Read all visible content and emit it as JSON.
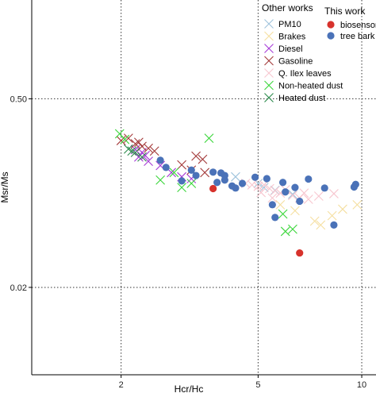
{
  "chart_data": {
    "type": "scatter",
    "x_scale": "log",
    "y_scale": "log",
    "xlabel": "Hcr/Hc",
    "ylabel": "Msr/Ms",
    "xlim": [
      1.1,
      11
    ],
    "ylim": [
      0.0045,
      2.7
    ],
    "x_ticks": [
      {
        "value": 2,
        "label": "2"
      },
      {
        "value": 5,
        "label": "5"
      },
      {
        "value": 10,
        "label": "10"
      }
    ],
    "y_ticks": [
      {
        "value": 0.5,
        "label": "0.50"
      },
      {
        "value": 0.02,
        "label": "0.02"
      }
    ],
    "grid": "dotted major lines",
    "legends": [
      {
        "title": "Other works",
        "position": "top-right",
        "entries": [
          "PM10",
          "Brakes",
          "Diesel",
          "Gasoline",
          "Q. Ilex leaves",
          "Non-heated dust",
          "Heated dust"
        ]
      },
      {
        "title": "This work",
        "position": "top-right",
        "entries": [
          "biosensor",
          "tree bark"
        ]
      }
    ],
    "series": [
      {
        "name": "PM10",
        "marker": "cross",
        "color": "#9ec3dc",
        "points": [
          [
            4.3,
            0.132
          ],
          [
            5.0,
            0.118
          ],
          [
            5.6,
            0.105
          ],
          [
            6.3,
            0.098
          ],
          [
            5.2,
            0.11
          ]
        ]
      },
      {
        "name": "Brakes",
        "marker": "cross",
        "color": "#f5dfa0",
        "points": [
          [
            5.8,
            0.082
          ],
          [
            6.4,
            0.074
          ],
          [
            7.3,
            0.062
          ],
          [
            7.6,
            0.058
          ],
          [
            8.8,
            0.076
          ],
          [
            9.7,
            0.082
          ],
          [
            8.2,
            0.068
          ]
        ]
      },
      {
        "name": "Diesel",
        "marker": "cross",
        "color": "#a63ad6",
        "points": [
          [
            2.2,
            0.21
          ],
          [
            2.3,
            0.2
          ],
          [
            2.25,
            0.185
          ],
          [
            2.4,
            0.172
          ],
          [
            2.6,
            0.16
          ],
          [
            3.0,
            0.132
          ],
          [
            3.2,
            0.128
          ],
          [
            2.8,
            0.142
          ],
          [
            2.35,
            0.19
          ]
        ]
      },
      {
        "name": "Gasoline",
        "marker": "cross",
        "color": "#a33a3a",
        "points": [
          [
            2.0,
            0.245
          ],
          [
            2.1,
            0.255
          ],
          [
            2.2,
            0.232
          ],
          [
            2.3,
            0.222
          ],
          [
            2.4,
            0.215
          ],
          [
            2.5,
            0.205
          ],
          [
            2.25,
            0.238
          ],
          [
            3.3,
            0.188
          ],
          [
            3.45,
            0.178
          ],
          [
            3.0,
            0.162
          ],
          [
            3.2,
            0.148
          ],
          [
            3.5,
            0.142
          ]
        ]
      },
      {
        "name": "Q. Ilex leaves",
        "marker": "cross",
        "color": "#f7c6cf",
        "points": [
          [
            4.6,
            0.118
          ],
          [
            4.8,
            0.115
          ],
          [
            5.0,
            0.112
          ],
          [
            5.2,
            0.115
          ],
          [
            5.4,
            0.108
          ],
          [
            5.6,
            0.104
          ],
          [
            5.8,
            0.1
          ],
          [
            6.0,
            0.106
          ],
          [
            6.3,
            0.096
          ],
          [
            6.6,
            0.092
          ],
          [
            7.0,
            0.09
          ],
          [
            7.5,
            0.095
          ],
          [
            8.3,
            0.099
          ],
          [
            6.8,
            0.1
          ],
          [
            5.5,
            0.092
          ],
          [
            5.1,
            0.101
          ]
        ]
      },
      {
        "name": "Non-heated dust",
        "marker": "cross",
        "color": "#3ad63a",
        "points": [
          [
            1.98,
            0.275
          ],
          [
            2.05,
            0.25
          ],
          [
            2.6,
            0.125
          ],
          [
            3.0,
            0.11
          ],
          [
            3.2,
            0.118
          ],
          [
            3.6,
            0.255
          ],
          [
            2.85,
            0.142
          ],
          [
            5.9,
            0.07
          ],
          [
            6.0,
            0.052
          ],
          [
            6.3,
            0.054
          ]
        ]
      },
      {
        "name": "Heated dust",
        "marker": "cross",
        "color": "#2e8b4e",
        "points": [
          [
            2.1,
            0.212
          ],
          [
            2.2,
            0.2
          ],
          [
            2.3,
            0.185
          ],
          [
            2.15,
            0.205
          ]
        ]
      },
      {
        "name": "biosensor",
        "marker": "circle",
        "color": "#d7322c",
        "points": [
          [
            3.7,
            0.108
          ],
          [
            6.6,
            0.036
          ]
        ]
      },
      {
        "name": "tree bark",
        "marker": "circle",
        "color": "#4a72b8",
        "points": [
          [
            2.6,
            0.175
          ],
          [
            2.7,
            0.155
          ],
          [
            3.0,
            0.123
          ],
          [
            3.2,
            0.148
          ],
          [
            3.3,
            0.135
          ],
          [
            3.7,
            0.143
          ],
          [
            3.9,
            0.141
          ],
          [
            4.0,
            0.135
          ],
          [
            3.8,
            0.12
          ],
          [
            4.0,
            0.125
          ],
          [
            4.2,
            0.113
          ],
          [
            4.5,
            0.118
          ],
          [
            4.3,
            0.109
          ],
          [
            4.9,
            0.131
          ],
          [
            5.3,
            0.128
          ],
          [
            5.5,
            0.082
          ],
          [
            5.6,
            0.066
          ],
          [
            5.9,
            0.12
          ],
          [
            6.4,
            0.11
          ],
          [
            6.0,
            0.102
          ],
          [
            6.6,
            0.087
          ],
          [
            7.0,
            0.127
          ],
          [
            7.8,
            0.109
          ],
          [
            8.3,
            0.058
          ],
          [
            9.6,
            0.116
          ],
          [
            9.5,
            0.111
          ]
        ]
      }
    ]
  }
}
